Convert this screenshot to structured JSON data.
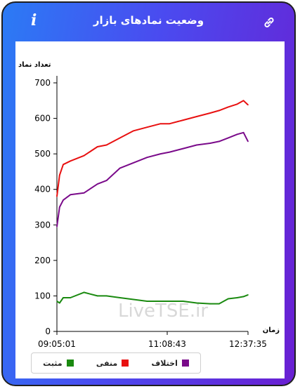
{
  "header": {
    "title": "وضعیت نمادهای بازار",
    "info_icon": "i",
    "link_icon": "link-icon"
  },
  "watermark": "LiveTSE.ir",
  "colors": {
    "منفی": "#e81010",
    "اختلاف": "#7a0a8a",
    "مثبت": "#1a8a10"
  },
  "chart_data": {
    "type": "line",
    "ylabel": "تعداد نماد",
    "xlabel": "زمان",
    "ylim": [
      0,
      700
    ],
    "yticks": [
      0,
      100,
      200,
      300,
      400,
      500,
      600,
      700
    ],
    "xtick_labels": [
      "09:05:01",
      "11:08:43",
      "12:37:35"
    ],
    "x": [
      "09:05",
      "09:08",
      "09:12",
      "09:20",
      "09:35",
      "09:50",
      "10:00",
      "10:15",
      "10:30",
      "10:45",
      "11:00",
      "11:10",
      "11:25",
      "11:40",
      "11:55",
      "12:05",
      "12:15",
      "12:25",
      "12:32",
      "12:37"
    ],
    "series": [
      {
        "name": "منفی",
        "color": "#e81010",
        "values": [
          380,
          440,
          470,
          480,
          495,
          520,
          525,
          545,
          565,
          575,
          585,
          585,
          595,
          605,
          615,
          622,
          632,
          640,
          650,
          638
        ]
      },
      {
        "name": "اختلاف",
        "color": "#7a0a8a",
        "values": [
          295,
          350,
          370,
          385,
          390,
          415,
          425,
          460,
          475,
          490,
          500,
          505,
          515,
          525,
          530,
          535,
          545,
          555,
          560,
          535
        ]
      },
      {
        "name": "مثبت",
        "color": "#1a8a10",
        "values": [
          85,
          80,
          95,
          95,
          110,
          100,
          100,
          95,
          90,
          85,
          85,
          85,
          85,
          80,
          78,
          78,
          92,
          95,
          98,
          103
        ]
      }
    ],
    "legend": [
      "اختلاف",
      "منفی",
      "مثبت"
    ],
    "legend_position": "bottom-left",
    "grid": false
  }
}
